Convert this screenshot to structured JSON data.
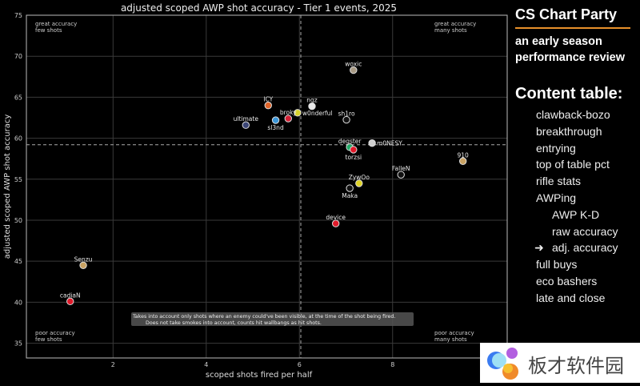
{
  "chart_data": {
    "type": "scatter",
    "title": "adjusted scoped AWP shot accuracy - Tier 1 events, 2025",
    "xlabel": "scoped shots fired per half",
    "ylabel": "adjusted scoped AWP shot accuracy",
    "xlim": [
      0.14,
      10.46
    ],
    "ylim": [
      33.2,
      75
    ],
    "xticks": [
      2,
      4,
      6,
      8
    ],
    "yticks": [
      35,
      40,
      45,
      50,
      55,
      60,
      65,
      70,
      75
    ],
    "grid": true,
    "reference_lines": {
      "x": 6.03,
      "y": 59.2
    },
    "quadrant_labels": {
      "top_left": [
        "great accuracy",
        "few shots"
      ],
      "top_right": [
        "great accuracy",
        "many shots"
      ],
      "bottom_left": [
        "poor accuracy",
        "few shots"
      ],
      "bottom_right": [
        "poor accuracy",
        "many shots"
      ]
    },
    "note": [
      "Takes into account only shots where an enemy could've been visible, at the time of the shot being fired.",
      "Does not take smokes into account, counts hit wallbangs as hit shots."
    ],
    "points": [
      {
        "label": "woxic",
        "x": 7.16,
        "y": 68.3,
        "color": "#a89a84"
      },
      {
        "label": "ICY",
        "x": 5.33,
        "y": 64.0,
        "color": "#e0652a"
      },
      {
        "label": "nqz",
        "x": 6.27,
        "y": 63.9,
        "color": "#e8e8e8"
      },
      {
        "label": "w0nderful",
        "x": 5.96,
        "y": 63.1,
        "color": "#d8d22a"
      },
      {
        "label": "broky",
        "x": 5.76,
        "y": 62.4,
        "color": "#d42035"
      },
      {
        "label": "sl3nd",
        "x": 5.49,
        "y": 62.2,
        "color": "#3a96d8"
      },
      {
        "label": "ultimate",
        "x": 4.85,
        "y": 61.6,
        "color": "#3c4676"
      },
      {
        "label": "sh1ro",
        "x": 7.01,
        "y": 62.25,
        "color": "#111111"
      },
      {
        "label": "m0NESY",
        "x": 7.56,
        "y": 59.4,
        "color": "#cfcfcf"
      },
      {
        "label": "degster",
        "x": 7.08,
        "y": 58.9,
        "color": "#22a866"
      },
      {
        "label": "torzsi",
        "x": 7.16,
        "y": 58.6,
        "color": "#e01a2a"
      },
      {
        "label": "910",
        "x": 9.51,
        "y": 57.2,
        "color": "#c9a263"
      },
      {
        "label": "FalleN",
        "x": 8.18,
        "y": 55.55,
        "color": "#111111"
      },
      {
        "label": "ZywOo",
        "x": 7.28,
        "y": 54.5,
        "color": "#e0d424"
      },
      {
        "label": "Maka",
        "x": 7.08,
        "y": 53.9,
        "color": "#111111"
      },
      {
        "label": "device",
        "x": 6.78,
        "y": 49.6,
        "color": "#e01a2a"
      },
      {
        "label": "Senzu",
        "x": 1.36,
        "y": 44.5,
        "color": "#c9a263"
      },
      {
        "label": "cadiaN",
        "x": 1.08,
        "y": 40.1,
        "color": "#e01a2a"
      }
    ]
  },
  "sidebar": {
    "brand": "CS Chart Party",
    "accent": "#e8902a",
    "subtitle": [
      "an early season",
      "performance review"
    ],
    "toc_heading": "Content table:",
    "toc": [
      "clawback-bozo",
      "breakthrough",
      "entrying",
      "top of table pct",
      "rifle stats",
      "AWPing"
    ],
    "toc_sub": [
      "AWP K-D",
      "raw accuracy"
    ],
    "toc_current_arrow": "➜",
    "toc_current": "adj. accuracy",
    "toc_rest": [
      "full buys",
      "eco bashers",
      "late and close"
    ]
  },
  "watermark": {
    "text": "板才软件园"
  }
}
